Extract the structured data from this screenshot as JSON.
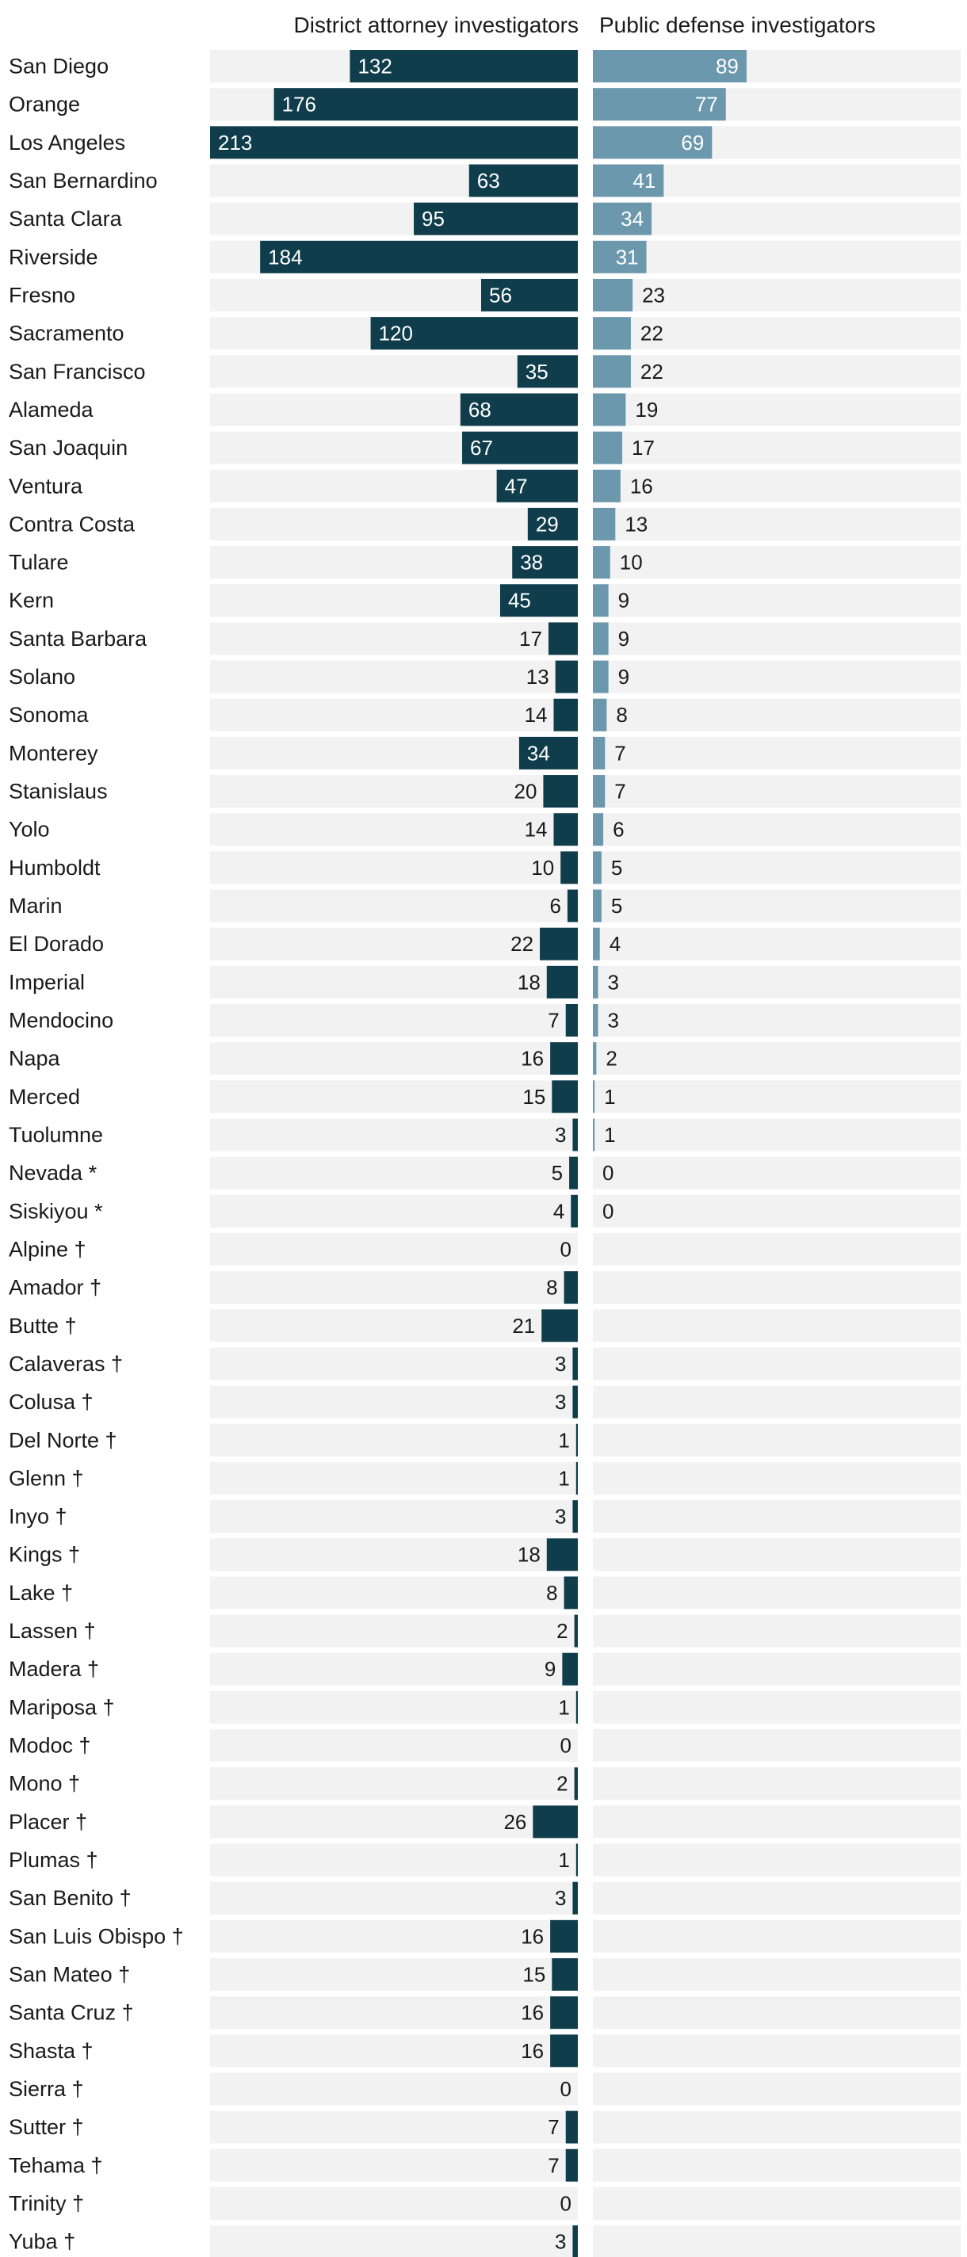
{
  "chart_data": {
    "type": "bar",
    "orientation": "horizontal-diverging",
    "title": "",
    "series": [
      {
        "name": "District attorney investigators",
        "color": "#0f3d4c",
        "values": [
          132,
          176,
          213,
          63,
          95,
          184,
          56,
          120,
          35,
          68,
          67,
          47,
          29,
          38,
          45,
          17,
          13,
          14,
          34,
          20,
          14,
          10,
          6,
          22,
          18,
          7,
          16,
          15,
          3,
          5,
          4,
          0,
          8,
          21,
          3,
          3,
          1,
          1,
          3,
          18,
          8,
          2,
          9,
          1,
          0,
          2,
          26,
          1,
          3,
          16,
          15,
          16,
          16,
          0,
          7,
          7,
          0,
          3
        ]
      },
      {
        "name": "Public defense investigators",
        "color": "#6b98ad",
        "values": [
          89,
          77,
          69,
          41,
          34,
          31,
          23,
          22,
          22,
          19,
          17,
          16,
          13,
          10,
          9,
          9,
          9,
          8,
          7,
          7,
          6,
          5,
          5,
          4,
          3,
          3,
          2,
          1,
          1,
          0,
          0,
          null,
          null,
          null,
          null,
          null,
          null,
          null,
          null,
          null,
          null,
          null,
          null,
          null,
          null,
          null,
          null,
          null,
          null,
          null,
          null,
          null,
          null,
          null,
          null,
          null,
          null,
          null
        ]
      }
    ],
    "categories": [
      "San Diego",
      "Orange",
      "Los Angeles",
      "San Bernardino",
      "Santa Clara",
      "Riverside",
      "Fresno",
      "Sacramento",
      "San Francisco",
      "Alameda",
      "San Joaquin",
      "Ventura",
      "Contra Costa",
      "Tulare",
      "Kern",
      "Santa Barbara",
      "Solano",
      "Sonoma",
      "Monterey",
      "Stanislaus",
      "Yolo",
      "Humboldt",
      "Marin",
      "El Dorado",
      "Imperial",
      "Mendocino",
      "Napa",
      "Merced",
      "Tuolumne",
      "Nevada *",
      "Siskiyou *",
      "Alpine †",
      "Amador †",
      "Butte †",
      "Calaveras †",
      "Colusa †",
      "Del Norte †",
      "Glenn †",
      "Inyo †",
      "Kings †",
      "Lake †",
      "Lassen †",
      "Madera †",
      "Mariposa †",
      "Modoc †",
      "Mono †",
      "Placer †",
      "Plumas †",
      "San Benito †",
      "San Luis Obispo †",
      "San Mateo †",
      "Santa Cruz †",
      "Shasta †",
      "Sierra †",
      "Sutter †",
      "Tehama †",
      "Trinity †",
      "Yuba †"
    ],
    "xlim_left": [
      0,
      213
    ],
    "xlim_right": [
      0,
      213
    ],
    "background_color": "#f2f2f2",
    "label_inside_color": "#ffffff",
    "label_outside_color": "#1a1a1a"
  }
}
